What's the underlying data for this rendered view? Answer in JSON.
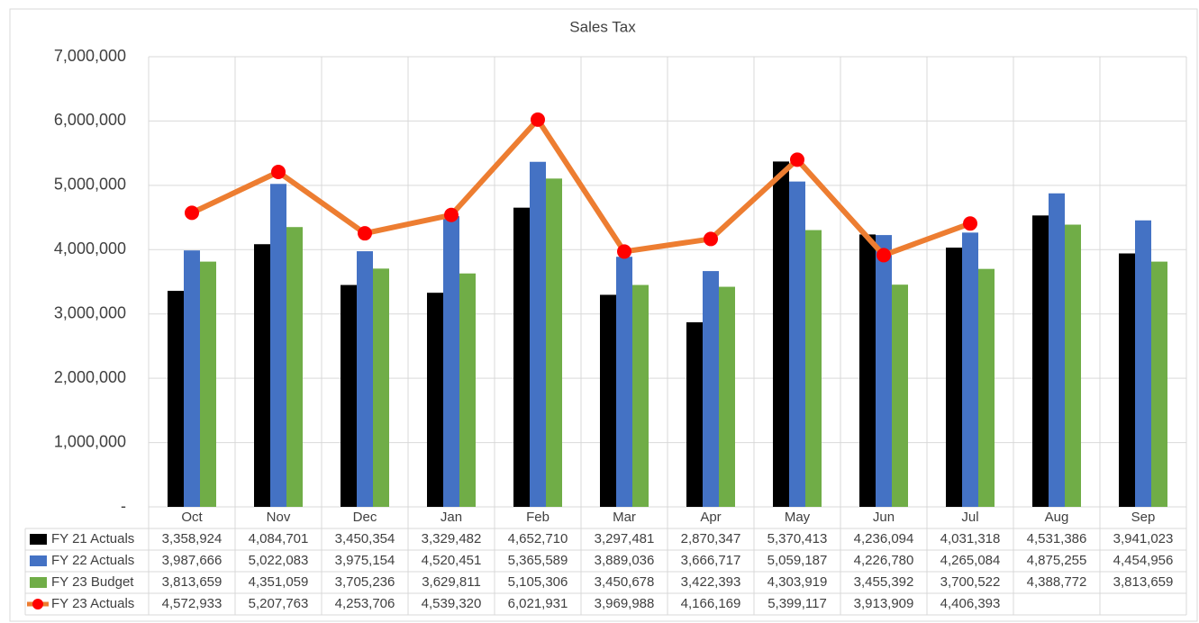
{
  "chart_data": {
    "type": "bar",
    "title": "Sales Tax",
    "categories": [
      "Oct",
      "Nov",
      "Dec",
      "Jan",
      "Feb",
      "Mar",
      "Apr",
      "May",
      "Jun",
      "Jul",
      "Aug",
      "Sep"
    ],
    "ylim": [
      0,
      7000000
    ],
    "yticks": [
      {
        "value": 0,
        "label": "-"
      },
      {
        "value": 1000000,
        "label": "1,000,000"
      },
      {
        "value": 2000000,
        "label": "2,000,000"
      },
      {
        "value": 3000000,
        "label": "3,000,000"
      },
      {
        "value": 4000000,
        "label": "4,000,000"
      },
      {
        "value": 5000000,
        "label": "5,000,000"
      },
      {
        "value": 6000000,
        "label": "6,000,000"
      },
      {
        "value": 7000000,
        "label": "7,000,000"
      }
    ],
    "grid": true,
    "series": [
      {
        "name": "FY 21 Actuals",
        "type": "bar",
        "color": "#000000",
        "values": [
          3358924,
          4084701,
          3450354,
          3329482,
          4652710,
          3297481,
          2870347,
          5370413,
          4236094,
          4031318,
          4531386,
          3941023
        ],
        "value_labels": [
          "3,358,924",
          "4,084,701",
          "3,450,354",
          "3,329,482",
          "4,652,710",
          "3,297,481",
          "2,870,347",
          "5,370,413",
          "4,236,094",
          "4,031,318",
          "4,531,386",
          "3,941,023"
        ]
      },
      {
        "name": "FY 22 Actuals",
        "type": "bar",
        "color": "#4472C4",
        "values": [
          3987666,
          5022083,
          3975154,
          4520451,
          5365589,
          3889036,
          3666717,
          5059187,
          4226780,
          4265084,
          4875255,
          4454956
        ],
        "value_labels": [
          "3,987,666",
          "5,022,083",
          "3,975,154",
          "4,520,451",
          "5,365,589",
          "3,889,036",
          "3,666,717",
          "5,059,187",
          "4,226,780",
          "4,265,084",
          "4,875,255",
          "4,454,956"
        ]
      },
      {
        "name": "FY 23 Budget",
        "type": "bar",
        "color": "#70AD47",
        "values": [
          3813659,
          4351059,
          3705236,
          3629811,
          5105306,
          3450678,
          3422393,
          4303919,
          3455392,
          3700522,
          4388772,
          3813659
        ],
        "value_labels": [
          "3,813,659",
          "4,351,059",
          "3,705,236",
          "3,629,811",
          "5,105,306",
          "3,450,678",
          "3,422,393",
          "4,303,919",
          "3,455,392",
          "3,700,522",
          "4,388,772",
          "3,813,659"
        ]
      },
      {
        "name": "FY 23 Actuals",
        "type": "line",
        "color": "#ED7D31",
        "marker_color": "#FF0000",
        "values": [
          4572933,
          5207763,
          4253706,
          4539320,
          6021931,
          3969988,
          4166169,
          5399117,
          3913909,
          4406393,
          null,
          null
        ],
        "value_labels": [
          "4,572,933",
          "5,207,763",
          "4,253,706",
          "4,539,320",
          "6,021,931",
          "3,969,988",
          "4,166,169",
          "5,399,117",
          "3,913,909",
          "4,406,393",
          null,
          null
        ]
      }
    ]
  }
}
